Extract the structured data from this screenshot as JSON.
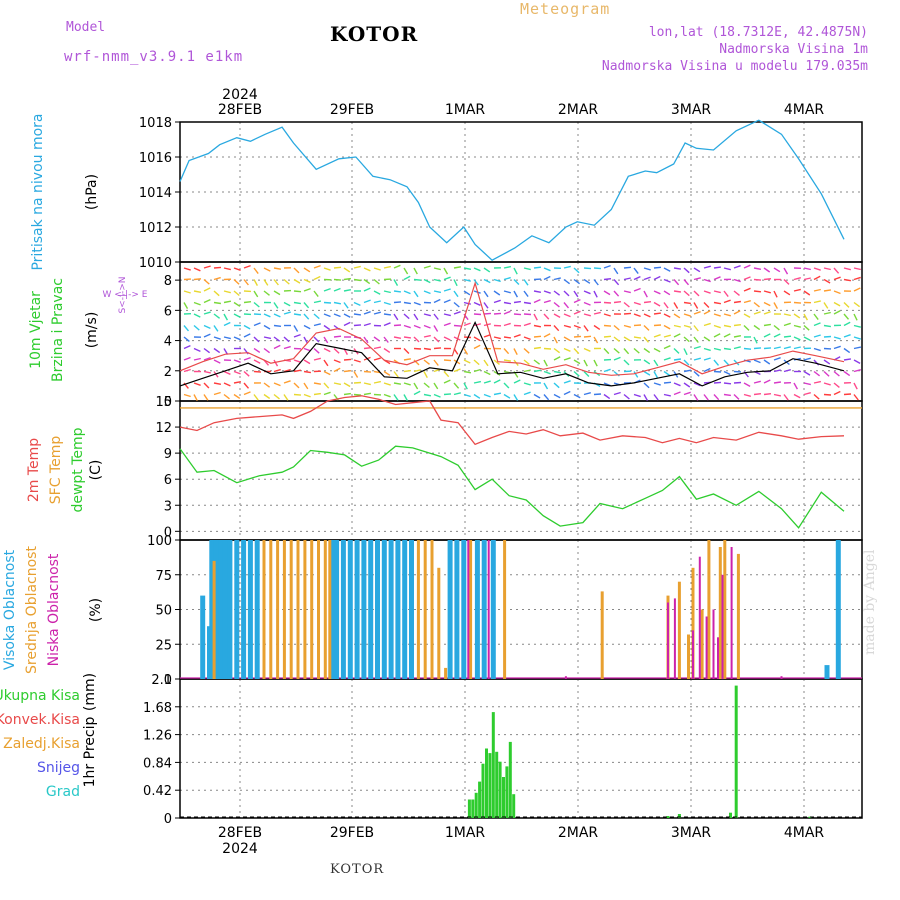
{
  "header": {
    "model_label": "Model",
    "model_name": "wrf-nmm_v3.9.1 e1km",
    "station": "KOTOR",
    "meteogram_label": "Meteogram",
    "lonlat": "lon,lat (18.7312E, 42.4875N)",
    "elevation": "Nadmorska Visina 1m",
    "model_elevation": "Nadmorska Visina u modelu 179.035m"
  },
  "footer": {
    "station": "KOTOR",
    "watermark": "made by Angel"
  },
  "time_axis": {
    "year_top": "2024",
    "year_bottom": "2024",
    "days": [
      "28FEB",
      "29FEB",
      "1MAR",
      "2MAR",
      "3MAR",
      "4MAR"
    ]
  },
  "colors": {
    "pressure": "#29a8e0",
    "temp2m": "#e84a4a",
    "sfc_temp": "#e8a030",
    "dewpoint": "#2ecc2e",
    "high_cloud": "#29a8e0",
    "mid_cloud": "#e8a030",
    "low_cloud": "#cc22aa",
    "total_precip": "#2ecc2e",
    "wind_speed": "#000000",
    "wind_gust": "#e84a4a"
  },
  "icons": {
    "wind_barb": "arrow-glyph"
  },
  "chart_data": [
    {
      "type": "line",
      "name": "pressure",
      "ylabel_1": "Pritisak na nivou mora",
      "ylabel_2": "(hPa)",
      "ylim": [
        1010,
        1018
      ],
      "yticks": [
        "1010",
        "1012",
        "1014",
        "1016",
        "1018"
      ],
      "x_days": [
        0,
        0.08,
        0.25,
        0.35,
        0.5,
        0.62,
        0.75,
        0.9,
        1.0,
        1.2,
        1.4,
        1.55,
        1.7,
        1.85,
        2.0,
        2.1,
        2.2,
        2.35,
        2.5,
        2.6,
        2.75,
        2.95,
        3.1,
        3.25,
        3.4,
        3.5,
        3.65,
        3.8,
        3.95,
        4.1,
        4.2,
        4.35,
        4.45,
        4.55,
        4.7,
        4.9,
        5.1,
        5.3,
        5.45,
        5.65,
        5.85
      ],
      "y": [
        1014.6,
        1015.8,
        1016.2,
        1016.7,
        1017.1,
        1016.9,
        1017.3,
        1017.7,
        1016.8,
        1015.3,
        1015.9,
        1016.0,
        1014.9,
        1014.7,
        1014.3,
        1013.4,
        1012.0,
        1011.1,
        1012.0,
        1011.0,
        1010.1,
        1010.8,
        1011.5,
        1011.1,
        1012.0,
        1012.3,
        1012.1,
        1013.0,
        1014.9,
        1015.2,
        1015.1,
        1015.6,
        1016.8,
        1016.5,
        1016.4,
        1017.5,
        1018.1,
        1017.3,
        1015.9,
        1013.9,
        1011.3
      ]
    },
    {
      "type": "line",
      "name": "wind",
      "ylabel_1": "10m Vjetar",
      "ylabel_2": "Brzina i Pravac",
      "ylabel_3": "(m/s)",
      "compass_label": "W <-|-> E",
      "compass_ns": "S<-|->N",
      "ylim": [
        0,
        9.2
      ],
      "yticks": [
        "0",
        "2",
        "4",
        "6",
        "8"
      ],
      "x_days": [
        0,
        0.2,
        0.4,
        0.6,
        0.8,
        1.0,
        1.2,
        1.4,
        1.6,
        1.8,
        2.0,
        2.2,
        2.4,
        2.6,
        2.8,
        3.0,
        3.2,
        3.4,
        3.6,
        3.8,
        4.0,
        4.2,
        4.4,
        4.6,
        4.8,
        5.0,
        5.2,
        5.4,
        5.6,
        5.85
      ],
      "speed": [
        1.0,
        1.5,
        2.0,
        2.5,
        1.8,
        2.0,
        3.8,
        3.5,
        3.2,
        1.6,
        1.5,
        2.2,
        2.0,
        5.2,
        1.8,
        1.9,
        1.5,
        1.8,
        1.2,
        1.0,
        1.2,
        1.5,
        1.8,
        1.0,
        1.6,
        1.9,
        2.0,
        2.8,
        2.5,
        2.0
      ],
      "gust": [
        2.0,
        2.6,
        3.1,
        3.2,
        2.5,
        2.8,
        4.5,
        4.8,
        4.1,
        2.7,
        2.4,
        3.0,
        3.0,
        7.8,
        2.6,
        2.5,
        2.1,
        2.4,
        1.9,
        1.7,
        1.8,
        2.2,
        2.6,
        1.8,
        2.3,
        2.7,
        2.9,
        3.3,
        3.0,
        2.6
      ]
    },
    {
      "type": "line",
      "name": "temperature",
      "ylabel_1": "2m Temp",
      "ylabel_2": "SFC Temp",
      "ylabel_3": "dewpt Temp",
      "ylabel_4": "(C)",
      "ylim": [
        -1,
        15
      ],
      "yticks": [
        "0",
        "3",
        "6",
        "9",
        "12",
        "15"
      ],
      "sfc_temp_constant": 14.2,
      "x_days": [
        0,
        0.15,
        0.3,
        0.5,
        0.7,
        0.9,
        1.0,
        1.15,
        1.3,
        1.45,
        1.6,
        1.75,
        1.9,
        2.05,
        2.2,
        2.3,
        2.45,
        2.6,
        2.75,
        2.9,
        3.05,
        3.2,
        3.35,
        3.55,
        3.7,
        3.9,
        4.1,
        4.25,
        4.4,
        4.55,
        4.7,
        4.9,
        5.1,
        5.3,
        5.45,
        5.65,
        5.85
      ],
      "temp2m": [
        12.0,
        11.6,
        12.5,
        13.0,
        13.2,
        13.4,
        13.0,
        13.8,
        15.0,
        15.4,
        15.6,
        15.2,
        14.6,
        14.8,
        15.0,
        12.8,
        12.5,
        10.0,
        10.8,
        11.5,
        11.2,
        11.7,
        11.0,
        11.3,
        10.5,
        11.0,
        10.8,
        10.2,
        10.7,
        10.2,
        10.8,
        10.5,
        11.4,
        11.0,
        10.6,
        10.9,
        11.0
      ],
      "dewpoint": [
        9.5,
        6.8,
        7.0,
        5.6,
        6.4,
        6.8,
        7.4,
        9.3,
        9.1,
        8.8,
        7.5,
        8.2,
        9.8,
        9.6,
        9.0,
        8.6,
        7.6,
        4.8,
        6.0,
        4.1,
        3.6,
        1.8,
        0.6,
        1.0,
        3.2,
        2.6,
        3.8,
        4.7,
        6.3,
        3.7,
        4.3,
        3.0,
        4.6,
        2.6,
        0.4,
        4.5,
        2.3
      ]
    },
    {
      "type": "bar",
      "name": "clouds",
      "ylabel_1": "Visoka Oblacnost",
      "ylabel_2": "Srednja Oblacnost",
      "ylabel_3": "Niska Oblacnost",
      "ylabel_4": "(%)",
      "ylim": [
        0,
        100
      ],
      "yticks": [
        "0",
        "25",
        "50",
        "75",
        "100"
      ],
      "high": [
        [
          0.0,
          0
        ],
        [
          0.2,
          60
        ],
        [
          0.26,
          38
        ],
        [
          0.28,
          100
        ],
        [
          0.32,
          100
        ],
        [
          0.36,
          100
        ],
        [
          0.4,
          100
        ],
        [
          0.44,
          100
        ],
        [
          0.5,
          100
        ],
        [
          0.56,
          100
        ],
        [
          0.62,
          100
        ],
        [
          0.68,
          100
        ],
        [
          1.34,
          100
        ],
        [
          1.38,
          100
        ],
        [
          1.44,
          100
        ],
        [
          1.5,
          100
        ],
        [
          1.56,
          100
        ],
        [
          1.62,
          100
        ],
        [
          1.68,
          100
        ],
        [
          1.74,
          100
        ],
        [
          1.8,
          100
        ],
        [
          1.86,
          100
        ],
        [
          1.92,
          100
        ],
        [
          1.98,
          100
        ],
        [
          2.04,
          100
        ],
        [
          2.38,
          100
        ],
        [
          2.44,
          100
        ],
        [
          2.5,
          100
        ],
        [
          2.62,
          100
        ],
        [
          2.68,
          100
        ],
        [
          2.76,
          100
        ],
        [
          5.7,
          10
        ],
        [
          5.8,
          100
        ]
      ],
      "mid": [
        [
          0.3,
          85
        ],
        [
          0.74,
          100
        ],
        [
          0.8,
          100
        ],
        [
          0.86,
          100
        ],
        [
          0.92,
          100
        ],
        [
          0.98,
          100
        ],
        [
          1.04,
          100
        ],
        [
          1.1,
          100
        ],
        [
          1.16,
          100
        ],
        [
          1.22,
          100
        ],
        [
          1.28,
          100
        ],
        [
          1.32,
          100
        ],
        [
          2.1,
          100
        ],
        [
          2.16,
          100
        ],
        [
          2.22,
          100
        ],
        [
          2.28,
          80
        ],
        [
          2.34,
          8
        ],
        [
          2.56,
          100
        ],
        [
          2.86,
          100
        ],
        [
          3.72,
          63
        ],
        [
          4.3,
          60
        ],
        [
          4.4,
          70
        ],
        [
          4.48,
          32
        ],
        [
          4.52,
          80
        ],
        [
          4.6,
          50
        ],
        [
          4.66,
          100
        ],
        [
          4.76,
          95
        ],
        [
          4.8,
          100
        ],
        [
          4.92,
          90
        ]
      ],
      "low": [
        [
          2.54,
          100
        ],
        [
          2.72,
          100
        ],
        [
          3.4,
          2
        ],
        [
          4.3,
          55
        ],
        [
          4.36,
          58
        ],
        [
          4.52,
          35
        ],
        [
          4.58,
          88
        ],
        [
          4.64,
          45
        ],
        [
          4.7,
          50
        ],
        [
          4.74,
          30
        ],
        [
          4.78,
          75
        ],
        [
          4.86,
          95
        ],
        [
          5.3,
          2
        ]
      ]
    },
    {
      "type": "bar",
      "name": "precipitation",
      "ylabel_1": "1hr Precip",
      "ylabel_2": "(mm)",
      "ylim": [
        0,
        2.1
      ],
      "yticks": [
        "0",
        "0.42",
        "0.84",
        "1.26",
        "1.68",
        "2.1"
      ],
      "legend": [
        "Ukupna Kisa",
        "Konvek.Kisa",
        "Zaledj.Kisa",
        "Snijeg",
        "Grad"
      ],
      "legend_colors": [
        "#2ecc2e",
        "#e84a4a",
        "#e8a030",
        "#5555e8",
        "#29c8c8"
      ],
      "total": [
        [
          2.55,
          0.28
        ],
        [
          2.58,
          0.28
        ],
        [
          2.61,
          0.38
        ],
        [
          2.64,
          0.55
        ],
        [
          2.67,
          0.82
        ],
        [
          2.7,
          1.05
        ],
        [
          2.73,
          0.98
        ],
        [
          2.76,
          1.6
        ],
        [
          2.79,
          1.0
        ],
        [
          2.82,
          0.85
        ],
        [
          2.85,
          0.62
        ],
        [
          2.88,
          0.78
        ],
        [
          2.91,
          1.15
        ],
        [
          2.94,
          0.36
        ],
        [
          4.3,
          0.03
        ],
        [
          4.4,
          0.06
        ],
        [
          4.85,
          0.08
        ],
        [
          4.9,
          2.0
        ],
        [
          5.55,
          0.02
        ]
      ]
    }
  ]
}
